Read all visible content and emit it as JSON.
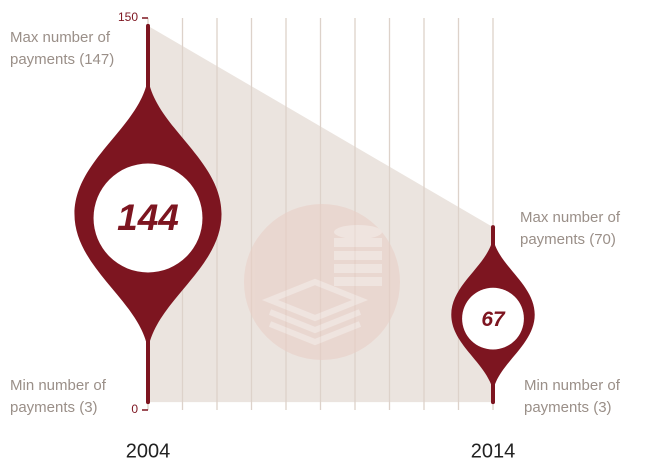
{
  "chart_data": {
    "type": "range",
    "categories": [
      "2004",
      "2014"
    ],
    "values": [
      144,
      67
    ],
    "max": [
      147,
      70
    ],
    "min": [
      3,
      3
    ],
    "color": "#7d1520",
    "ylim": [
      0,
      150
    ],
    "yticks": [
      0,
      150
    ],
    "annotations": [
      {
        "lines": [
          "Max number of",
          "payments (147)"
        ]
      },
      {
        "lines": [
          "Min number of",
          "payments (3)"
        ]
      },
      {
        "lines": [
          "Max number of",
          "payments (70)"
        ]
      },
      {
        "lines": [
          "Min number of",
          "payments (3)"
        ]
      }
    ]
  }
}
